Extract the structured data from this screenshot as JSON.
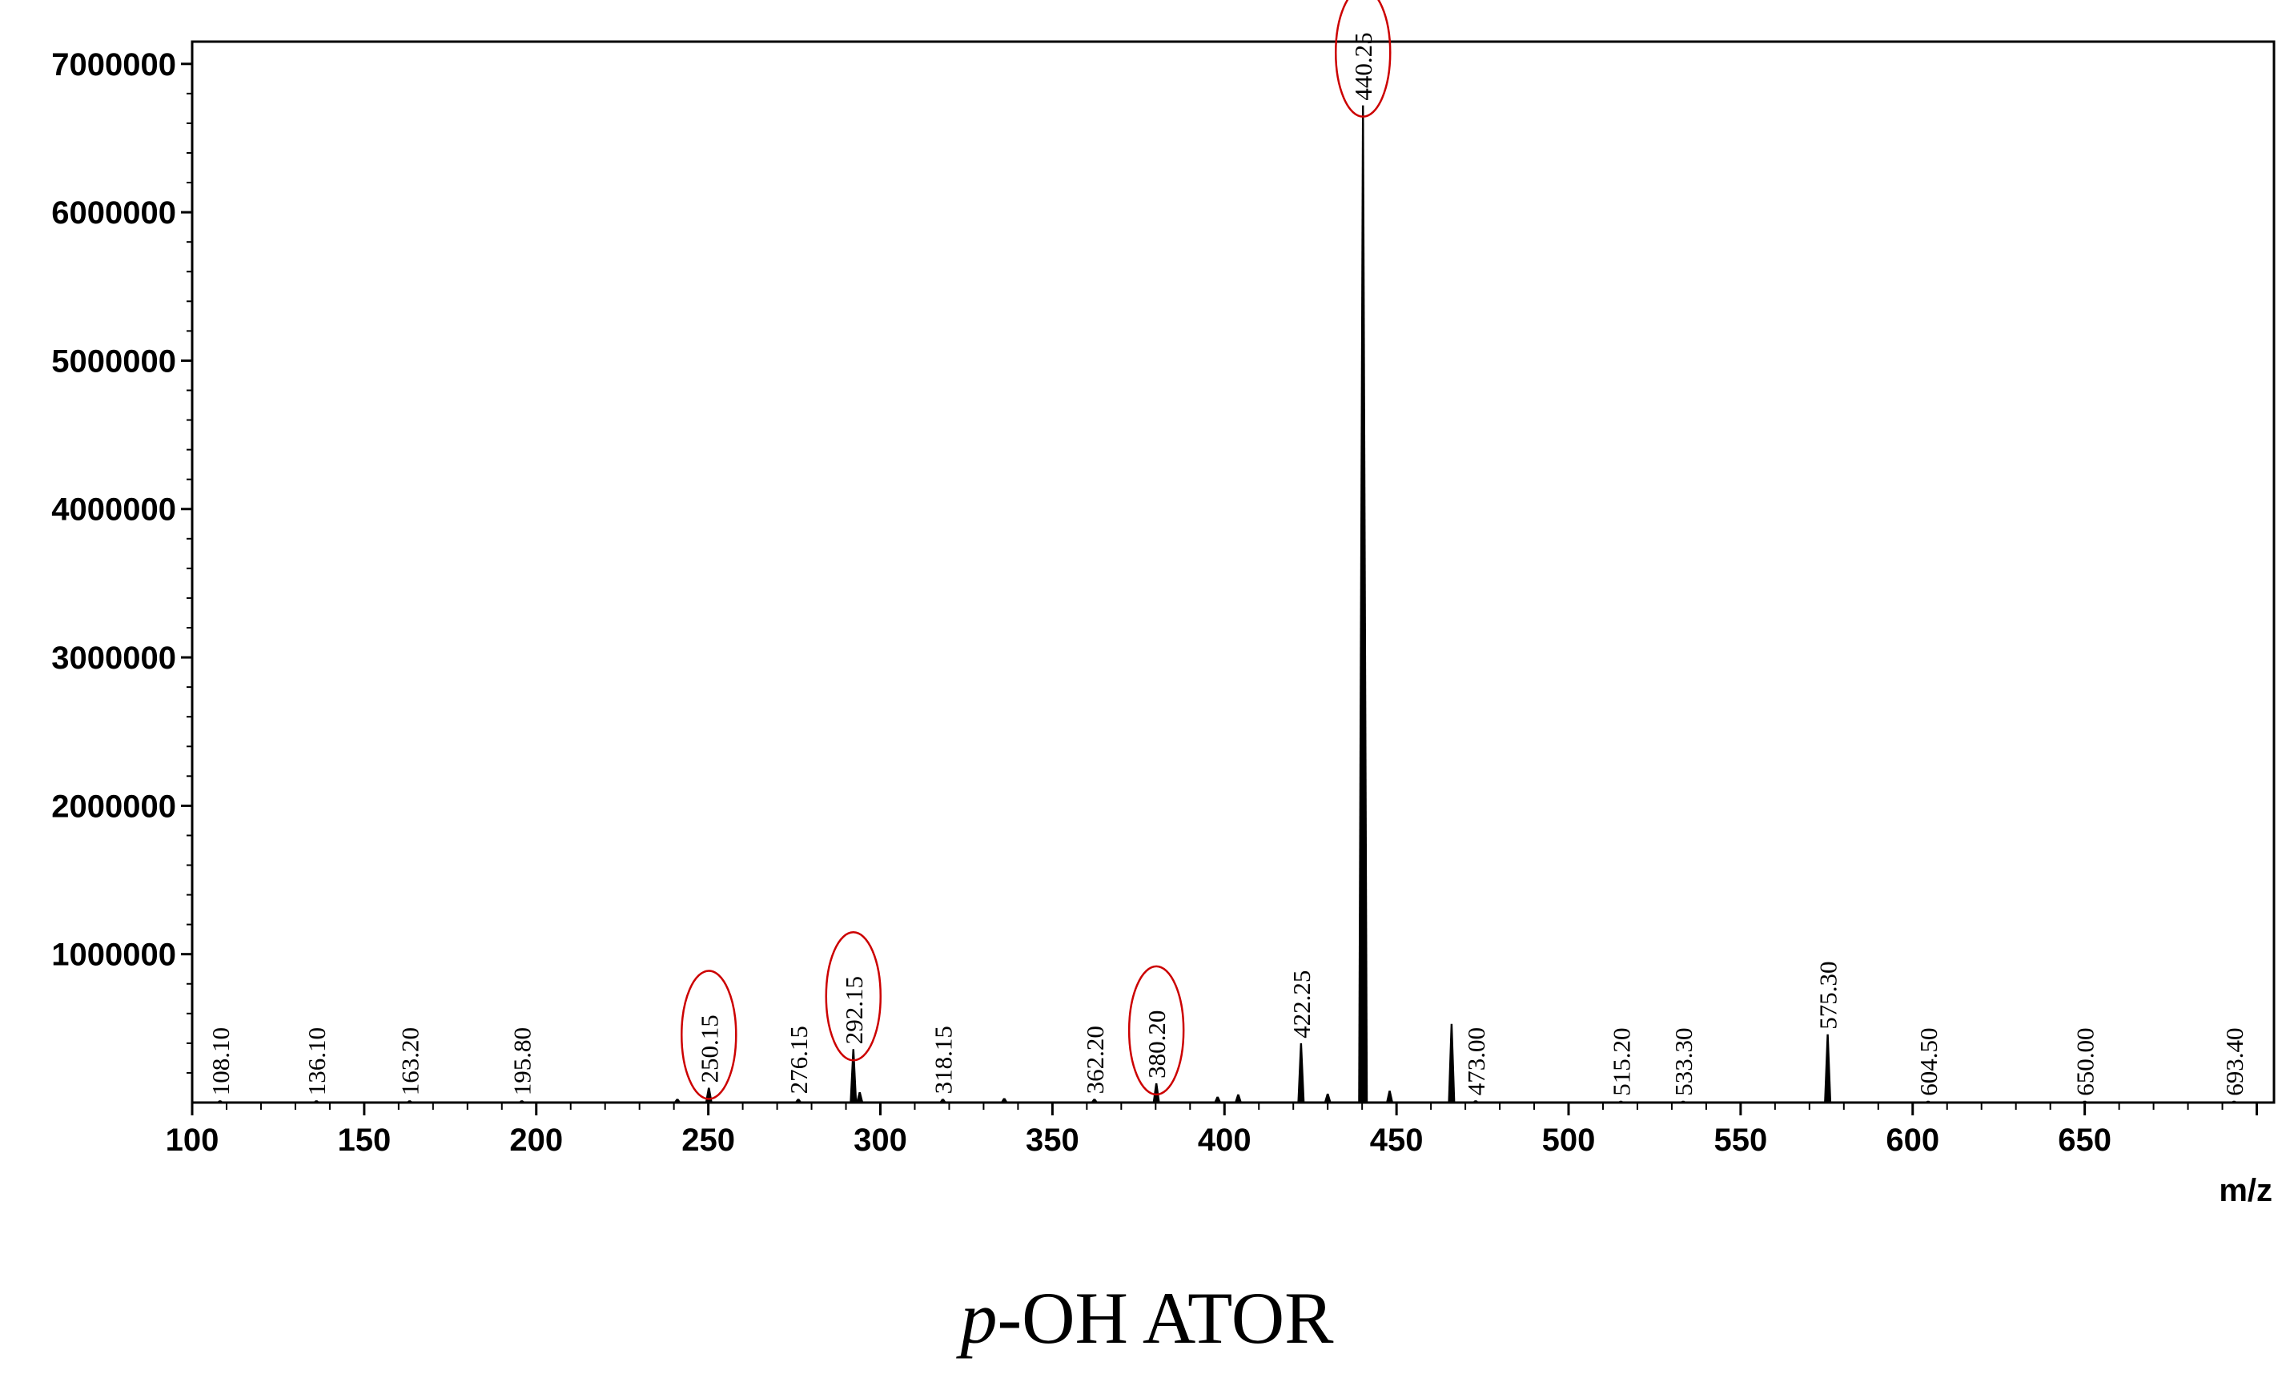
{
  "chart_data": {
    "type": "bar",
    "xlabel": "m/z",
    "ylabel": "",
    "xlim": [
      100,
      705
    ],
    "ylim": [
      0,
      7150000
    ],
    "x_ticks": [
      100,
      150,
      200,
      250,
      300,
      350,
      400,
      450,
      500,
      550,
      600,
      650
    ],
    "y_ticks": [
      1000000,
      2000000,
      3000000,
      4000000,
      5000000,
      6000000,
      7000000
    ],
    "y_tick_labels": [
      "1000000",
      "2000000",
      "3000000",
      "4000000",
      "5000000",
      "6000000",
      "7000000"
    ],
    "grid": false,
    "peaks": [
      {
        "mz": 108.1,
        "intensity": 15000
      },
      {
        "mz": 136.1,
        "intensity": 15000
      },
      {
        "mz": 163.2,
        "intensity": 15000
      },
      {
        "mz": 195.8,
        "intensity": 15000
      },
      {
        "mz": 241.0,
        "intensity": 25000
      },
      {
        "mz": 250.15,
        "intensity": 100000
      },
      {
        "mz": 276.15,
        "intensity": 25000
      },
      {
        "mz": 292.15,
        "intensity": 360000
      },
      {
        "mz": 294.0,
        "intensity": 70000
      },
      {
        "mz": 318.15,
        "intensity": 25000
      },
      {
        "mz": 336.0,
        "intensity": 30000
      },
      {
        "mz": 362.2,
        "intensity": 25000
      },
      {
        "mz": 380.2,
        "intensity": 130000
      },
      {
        "mz": 398.0,
        "intensity": 40000
      },
      {
        "mz": 404.0,
        "intensity": 55000
      },
      {
        "mz": 422.25,
        "intensity": 400000
      },
      {
        "mz": 430.0,
        "intensity": 60000
      },
      {
        "mz": 440.25,
        "intensity": 6720000
      },
      {
        "mz": 448.0,
        "intensity": 80000
      },
      {
        "mz": 466.0,
        "intensity": 530000
      },
      {
        "mz": 473.0,
        "intensity": 15000
      },
      {
        "mz": 515.2,
        "intensity": 12000
      },
      {
        "mz": 533.3,
        "intensity": 12000
      },
      {
        "mz": 575.3,
        "intensity": 460000
      },
      {
        "mz": 604.5,
        "intensity": 12000
      },
      {
        "mz": 650.0,
        "intensity": 12000
      },
      {
        "mz": 693.4,
        "intensity": 12000
      }
    ],
    "peak_labels": [
      {
        "mz": 108.1,
        "text": "108.10",
        "circled": false
      },
      {
        "mz": 136.1,
        "text": "136.10",
        "circled": false
      },
      {
        "mz": 163.2,
        "text": "163.20",
        "circled": false
      },
      {
        "mz": 195.8,
        "text": "195.80",
        "circled": false
      },
      {
        "mz": 250.15,
        "text": "250.15",
        "circled": true
      },
      {
        "mz": 276.15,
        "text": "276.15",
        "circled": false
      },
      {
        "mz": 292.15,
        "text": "292.15",
        "circled": true
      },
      {
        "mz": 318.15,
        "text": "318.15",
        "circled": false
      },
      {
        "mz": 362.2,
        "text": "362.20",
        "circled": false
      },
      {
        "mz": 380.2,
        "text": "380.20",
        "circled": true
      },
      {
        "mz": 422.25,
        "text": "422.25",
        "circled": false
      },
      {
        "mz": 440.25,
        "text": "440.25",
        "circled": true
      },
      {
        "mz": 473.0,
        "text": "473.00",
        "circled": false
      },
      {
        "mz": 515.2,
        "text": "515.20",
        "circled": false
      },
      {
        "mz": 533.3,
        "text": "533.30",
        "circled": false
      },
      {
        "mz": 575.3,
        "text": "575.30",
        "circled": false
      },
      {
        "mz": 604.5,
        "text": "604.50",
        "circled": false
      },
      {
        "mz": 650.0,
        "text": "650.00",
        "circled": false
      },
      {
        "mz": 693.4,
        "text": "693.40",
        "circled": false
      }
    ],
    "colors": {
      "peak": "#000000",
      "highlight": "#cc0000",
      "axis": "#000000"
    }
  },
  "caption": {
    "prefix": "p",
    "rest": "-OH ATOR"
  }
}
